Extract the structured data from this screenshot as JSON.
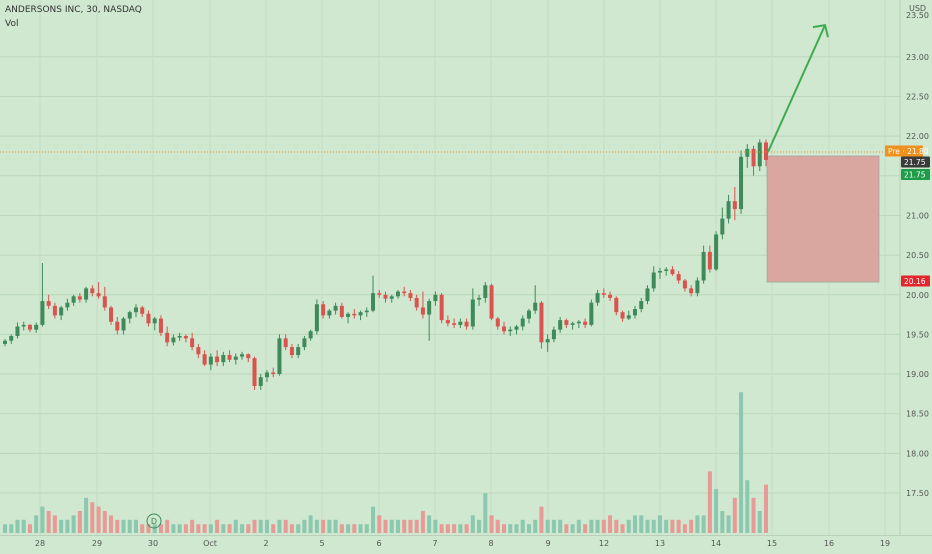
{
  "header": {
    "title": "ANDERSONS INC, 30, NASDAQ",
    "vol_label": "Vol"
  },
  "currency": "USD",
  "colors": {
    "background": "#cfe8cf",
    "up": "#3e8a5b",
    "down": "#d9534f",
    "vol_up": "#8cc8b0",
    "vol_down": "#e89a96",
    "arrow": "#3fab4f",
    "zone": "#d9a7a0",
    "pre_badge": "#f0901d",
    "green_badge": "#1e9c4a",
    "red_badge": "#e5242b"
  },
  "chart_data": {
    "type": "candlestick",
    "title": "ANDERSONS INC, 30, NASDAQ",
    "ylim": [
      17.0,
      23.5
    ],
    "y_ticks": [
      "17.50",
      "18.00",
      "18.50",
      "19.00",
      "19.50",
      "20.00",
      "20.50",
      "21.00",
      "21.50",
      "22.00",
      "22.50",
      "23.00"
    ],
    "x_tick_labels": [
      "28",
      "29",
      "30",
      "Oct",
      "2",
      "5",
      "6",
      "7",
      "8",
      "9",
      "12",
      "13",
      "14",
      "15",
      "16",
      "19"
    ],
    "price_badges": [
      {
        "text": "Pre · 21.80",
        "value": 21.8,
        "kind": "pre"
      },
      {
        "text": "21.75",
        "value": 21.75,
        "kind": "dark"
      },
      {
        "text": "21.75",
        "value": 21.75,
        "kind": "green"
      },
      {
        "text": "20.16",
        "value": 20.16,
        "kind": "red"
      }
    ],
    "event_marker": "D",
    "target_zone": {
      "top": 21.75,
      "bottom": 20.16
    },
    "arrow": {
      "from": 21.8,
      "to": 23.4
    },
    "candles": [
      [
        19.38,
        19.44,
        19.35,
        19.42,
        2
      ],
      [
        19.42,
        19.5,
        19.38,
        19.48,
        2
      ],
      [
        19.48,
        19.65,
        19.45,
        19.6,
        3
      ],
      [
        19.6,
        19.66,
        19.55,
        19.62,
        3
      ],
      [
        19.62,
        19.63,
        19.53,
        19.56,
        2
      ],
      [
        19.56,
        19.65,
        19.52,
        19.62,
        4
      ],
      [
        19.62,
        20.4,
        19.6,
        19.92,
        6
      ],
      [
        19.92,
        20.0,
        19.82,
        19.86,
        5
      ],
      [
        19.86,
        19.9,
        19.7,
        19.74,
        4
      ],
      [
        19.74,
        19.86,
        19.68,
        19.84,
        3
      ],
      [
        19.84,
        19.95,
        19.8,
        19.9,
        3
      ],
      [
        19.9,
        20.0,
        19.86,
        19.98,
        4
      ],
      [
        19.98,
        20.02,
        19.9,
        19.94,
        5
      ],
      [
        19.94,
        20.1,
        19.9,
        20.08,
        8
      ],
      [
        20.08,
        20.12,
        19.98,
        20.02,
        7
      ],
      [
        20.02,
        20.16,
        19.95,
        19.98,
        6
      ],
      [
        19.98,
        20.1,
        19.8,
        19.84,
        5
      ],
      [
        19.84,
        19.86,
        19.62,
        19.66,
        4
      ],
      [
        19.66,
        19.72,
        19.5,
        19.55,
        3
      ],
      [
        19.55,
        19.72,
        19.5,
        19.7,
        3
      ],
      [
        19.7,
        19.8,
        19.64,
        19.78,
        3
      ],
      [
        19.78,
        19.88,
        19.72,
        19.84,
        3
      ],
      [
        19.84,
        19.86,
        19.72,
        19.76,
        2
      ],
      [
        19.76,
        19.8,
        19.6,
        19.64,
        2
      ],
      [
        19.64,
        19.72,
        19.55,
        19.7,
        2
      ],
      [
        19.7,
        19.74,
        19.48,
        19.52,
        2
      ],
      [
        19.52,
        19.6,
        19.35,
        19.4,
        3
      ],
      [
        19.4,
        19.5,
        19.36,
        19.46,
        2
      ],
      [
        19.46,
        19.52,
        19.42,
        19.48,
        2
      ],
      [
        19.48,
        19.5,
        19.4,
        19.45,
        2
      ],
      [
        19.45,
        19.52,
        19.3,
        19.34,
        3
      ],
      [
        19.34,
        19.38,
        19.2,
        19.25,
        2
      ],
      [
        19.25,
        19.3,
        19.1,
        19.12,
        2
      ],
      [
        19.12,
        19.26,
        19.05,
        19.22,
        2
      ],
      [
        19.22,
        19.3,
        19.1,
        19.15,
        3
      ],
      [
        19.15,
        19.28,
        19.1,
        19.24,
        2
      ],
      [
        19.24,
        19.3,
        19.15,
        19.18,
        2
      ],
      [
        19.18,
        19.26,
        19.12,
        19.22,
        3
      ],
      [
        19.22,
        19.28,
        19.18,
        19.25,
        2
      ],
      [
        19.25,
        19.26,
        19.15,
        19.2,
        2
      ],
      [
        19.2,
        19.22,
        18.8,
        18.85,
        3
      ],
      [
        18.85,
        19.0,
        18.8,
        18.96,
        3
      ],
      [
        18.96,
        19.05,
        18.9,
        19.02,
        3
      ],
      [
        19.02,
        19.08,
        18.96,
        19.0,
        2
      ],
      [
        19.0,
        19.5,
        18.98,
        19.45,
        3
      ],
      [
        19.45,
        19.5,
        19.3,
        19.34,
        3
      ],
      [
        19.34,
        19.38,
        19.2,
        19.24,
        2
      ],
      [
        19.24,
        19.38,
        19.2,
        19.34,
        2
      ],
      [
        19.34,
        19.48,
        19.3,
        19.45,
        3
      ],
      [
        19.45,
        19.56,
        19.42,
        19.54,
        4
      ],
      [
        19.54,
        19.94,
        19.5,
        19.88,
        3
      ],
      [
        19.88,
        19.92,
        19.7,
        19.74,
        3
      ],
      [
        19.74,
        19.82,
        19.7,
        19.8,
        3
      ],
      [
        19.8,
        19.9,
        19.75,
        19.86,
        3
      ],
      [
        19.86,
        19.9,
        19.7,
        19.72,
        2
      ],
      [
        19.72,
        19.78,
        19.64,
        19.76,
        2
      ],
      [
        19.76,
        19.82,
        19.7,
        19.74,
        2
      ],
      [
        19.74,
        19.8,
        19.68,
        19.78,
        2
      ],
      [
        19.78,
        19.84,
        19.72,
        19.8,
        2
      ],
      [
        19.8,
        20.24,
        19.78,
        20.02,
        6
      ],
      [
        20.02,
        20.06,
        19.96,
        20.0,
        4
      ],
      [
        20.0,
        20.04,
        19.9,
        19.95,
        3
      ],
      [
        19.95,
        20.0,
        19.9,
        19.98,
        3
      ],
      [
        19.98,
        20.06,
        19.95,
        20.04,
        3
      ],
      [
        20.04,
        20.1,
        19.98,
        20.02,
        3
      ],
      [
        20.02,
        20.06,
        19.92,
        19.96,
        3
      ],
      [
        19.96,
        20.0,
        19.8,
        19.84,
        3
      ],
      [
        19.84,
        20.04,
        19.7,
        19.75,
        5
      ],
      [
        19.75,
        19.95,
        19.42,
        19.92,
        4
      ],
      [
        19.92,
        20.04,
        19.86,
        20.0,
        3
      ],
      [
        20.0,
        20.02,
        19.64,
        19.68,
        2
      ],
      [
        19.68,
        19.74,
        19.6,
        19.64,
        2
      ],
      [
        19.64,
        19.7,
        19.58,
        19.62,
        2
      ],
      [
        19.62,
        19.7,
        19.58,
        19.66,
        2
      ],
      [
        19.66,
        19.7,
        19.56,
        19.6,
        2
      ],
      [
        19.6,
        20.08,
        19.56,
        19.94,
        4
      ],
      [
        19.94,
        20.0,
        19.86,
        19.96,
        3
      ],
      [
        19.96,
        20.16,
        19.9,
        20.12,
        9
      ],
      [
        20.12,
        20.14,
        19.68,
        19.7,
        4
      ],
      [
        19.7,
        19.72,
        19.56,
        19.6,
        3
      ],
      [
        19.6,
        19.66,
        19.5,
        19.54,
        2
      ],
      [
        19.54,
        19.6,
        19.48,
        19.56,
        2
      ],
      [
        19.56,
        19.62,
        19.5,
        19.6,
        2
      ],
      [
        19.6,
        19.74,
        19.55,
        19.7,
        3
      ],
      [
        19.7,
        19.82,
        19.64,
        19.8,
        2
      ],
      [
        19.8,
        20.12,
        19.76,
        19.9,
        3
      ],
      [
        19.9,
        19.92,
        19.32,
        19.4,
        6
      ],
      [
        19.4,
        19.5,
        19.28,
        19.44,
        3
      ],
      [
        19.44,
        19.6,
        19.4,
        19.56,
        3
      ],
      [
        19.56,
        19.72,
        19.52,
        19.68,
        3
      ],
      [
        19.68,
        19.7,
        19.58,
        19.62,
        2
      ],
      [
        19.62,
        19.66,
        19.56,
        19.64,
        2
      ],
      [
        19.64,
        19.68,
        19.58,
        19.66,
        3
      ],
      [
        19.66,
        19.7,
        19.58,
        19.62,
        2
      ],
      [
        19.62,
        19.94,
        19.6,
        19.9,
        3
      ],
      [
        19.9,
        20.06,
        19.86,
        20.02,
        3
      ],
      [
        20.02,
        20.08,
        19.96,
        20.0,
        3
      ],
      [
        20.0,
        20.04,
        19.92,
        19.96,
        4
      ],
      [
        19.96,
        19.98,
        19.74,
        19.78,
        3
      ],
      [
        19.78,
        19.8,
        19.66,
        19.7,
        2
      ],
      [
        19.7,
        19.8,
        19.68,
        19.74,
        3
      ],
      [
        19.74,
        19.86,
        19.7,
        19.82,
        4
      ],
      [
        19.82,
        19.96,
        19.78,
        19.92,
        4
      ],
      [
        19.92,
        20.12,
        19.88,
        20.08,
        3
      ],
      [
        20.08,
        20.36,
        20.04,
        20.28,
        3
      ],
      [
        20.28,
        20.34,
        20.2,
        20.3,
        4
      ],
      [
        20.3,
        20.35,
        20.24,
        20.32,
        3
      ],
      [
        20.32,
        20.36,
        20.24,
        20.26,
        3
      ],
      [
        20.26,
        20.3,
        20.14,
        20.18,
        3
      ],
      [
        20.18,
        20.2,
        20.04,
        20.08,
        2
      ],
      [
        20.08,
        20.12,
        19.98,
        20.02,
        3
      ],
      [
        20.02,
        20.22,
        19.98,
        20.18,
        4
      ],
      [
        20.18,
        20.62,
        20.14,
        20.54,
        4
      ],
      [
        20.54,
        20.62,
        20.28,
        20.32,
        14
      ],
      [
        20.32,
        20.8,
        20.3,
        20.76,
        10
      ],
      [
        20.76,
        21.1,
        20.7,
        20.96,
        5
      ],
      [
        20.96,
        21.26,
        20.9,
        21.18,
        4
      ],
      [
        21.18,
        21.36,
        20.94,
        21.08,
        8
      ],
      [
        21.08,
        21.82,
        21.02,
        21.74,
        32
      ],
      [
        21.74,
        21.9,
        21.6,
        21.84,
        12
      ],
      [
        21.84,
        21.88,
        21.5,
        21.62,
        8
      ],
      [
        21.62,
        21.96,
        21.56,
        21.92,
        5
      ],
      [
        21.92,
        21.96,
        21.62,
        21.7,
        11
      ]
    ]
  }
}
